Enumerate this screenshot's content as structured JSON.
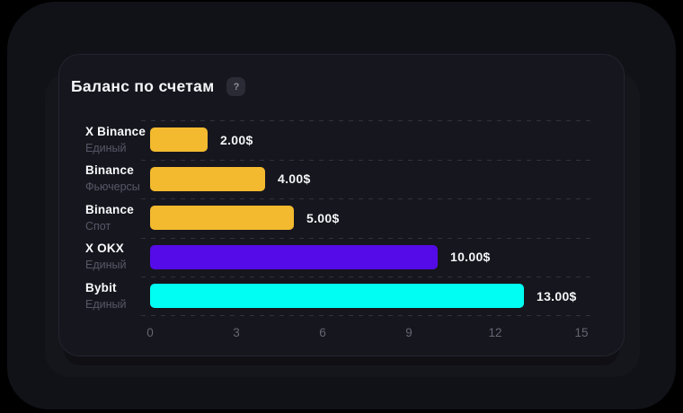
{
  "card": {
    "title": "Баланс по счетам",
    "help_badge": "?"
  },
  "chart_data": {
    "type": "bar",
    "orientation": "horizontal",
    "title": "Баланс по счетам",
    "xlabel": "",
    "ylabel": "",
    "xlim": [
      0,
      15
    ],
    "xticks": [
      "0",
      "3",
      "6",
      "9",
      "12",
      "15"
    ],
    "grid": "dashed horizontal row separators, x-axis ticks only",
    "legend": "none",
    "value_unit": "$",
    "rows": [
      {
        "label": "X Binance",
        "sublabel": "Единый",
        "value": 2,
        "value_label": "2.00$",
        "color": "#F3BA2F"
      },
      {
        "label": "Binance",
        "sublabel": "Фьючерсы",
        "value": 4,
        "value_label": "4.00$",
        "color": "#F3BA2F"
      },
      {
        "label": "Binance",
        "sublabel": "Спот",
        "value": 5,
        "value_label": "5.00$",
        "color": "#F3BA2F"
      },
      {
        "label": "X OKX",
        "sublabel": "Единый",
        "value": 10,
        "value_label": "10.00$",
        "color": "#550BE8"
      },
      {
        "label": "Bybit",
        "sublabel": "Единый",
        "value": 13,
        "value_label": "13.00$",
        "color": "#00FFF2"
      }
    ],
    "colors": {
      "binance_yellow": "#F3BA2F",
      "okx_purple": "#550BE8",
      "bybit_cyan": "#00FFF2",
      "card_bg": "#16161E",
      "window_bg": "#111218",
      "value_text": "#F4F5F7",
      "sublabel_text": "#565867",
      "tick_text": "#646672"
    }
  }
}
